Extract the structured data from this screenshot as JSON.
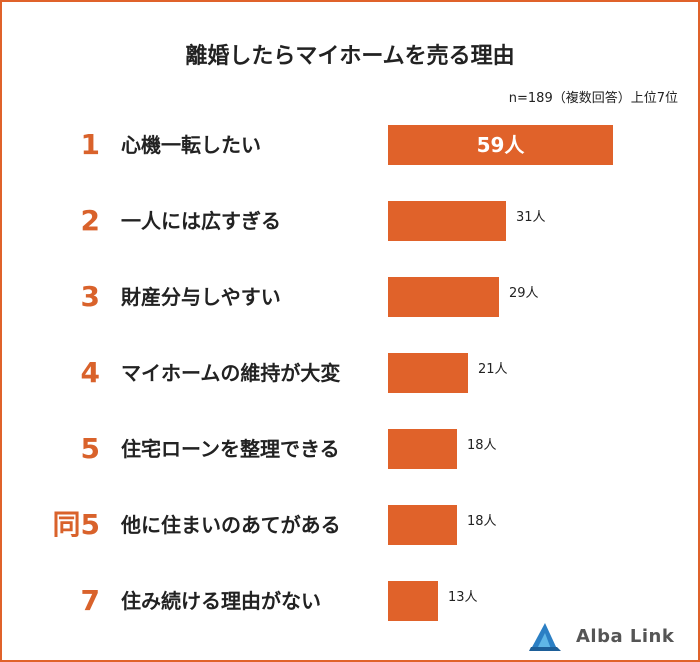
{
  "title": "離婚したらマイホームを売る理由",
  "note": "n=189（複数回答）上位7位",
  "logo_text": "Alba Link",
  "colors": {
    "bar": "#e0622a",
    "rank": "#d9622b",
    "frame": "#e0622a"
  },
  "chart_data": {
    "type": "bar",
    "orientation": "horizontal",
    "ranks": [
      "1",
      "2",
      "3",
      "4",
      "5",
      "同5",
      "7"
    ],
    "categories": [
      "心機一転したい",
      "一人には広すぎる",
      "財産分与しやすい",
      "マイホームの維持が大変",
      "住宅ローンを整理できる",
      "他に住まいのあてがある",
      "住み続ける理由がない"
    ],
    "values": [
      59,
      31,
      29,
      21,
      18,
      18,
      13
    ],
    "value_labels": [
      "59人",
      "31人",
      "29人",
      "21人",
      "18人",
      "18人",
      "13人"
    ],
    "unit": "人"
  }
}
